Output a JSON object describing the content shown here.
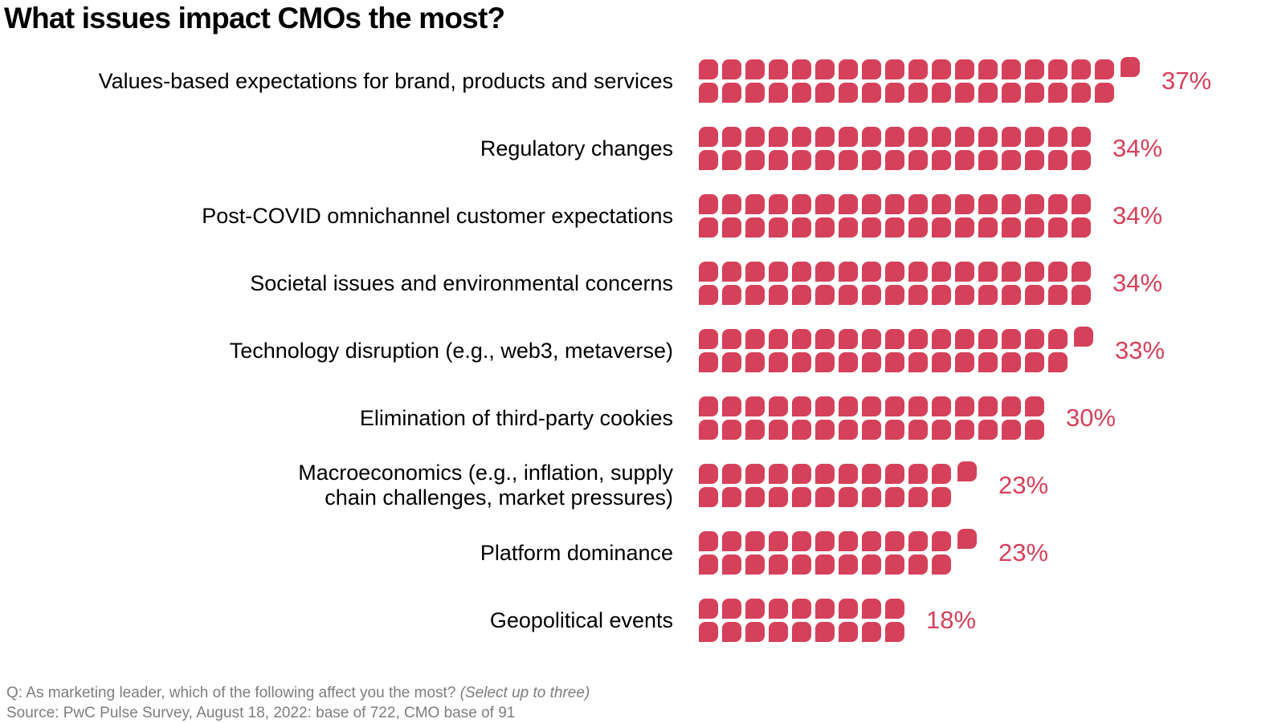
{
  "title": "What issues impact CMOs the most?",
  "colors": {
    "rose": "#d5415a",
    "label_text": "#000000",
    "footnote_text": "#7d7d7d",
    "background": "#ffffff"
  },
  "chart_data": {
    "type": "bar",
    "subtype": "pictogram",
    "orientation": "horizontal",
    "title": "What issues impact CMOs the most?",
    "categories": [
      "Values-based expectations for brand, products and services",
      "Regulatory changes",
      "Post-COVID omnichannel customer expectations",
      "Societal issues and environmental concerns",
      "Technology disruption (e.g., web3, metaverse)",
      "Elimination of third-party cookies",
      "Macroeconomics (e.g., inflation, supply\nchain challenges, market pressures)",
      "Platform dominance",
      "Geopolitical events"
    ],
    "values": [
      37,
      34,
      34,
      34,
      33,
      30,
      23,
      23,
      18
    ],
    "value_labels": [
      "37%",
      "34%",
      "34%",
      "34%",
      "33%",
      "30%",
      "23%",
      "23%",
      "18%"
    ],
    "unit_percent_per_square": 1,
    "squares_per_column": 2,
    "unit_shape": "rounded-square",
    "grid": false,
    "legend": false
  },
  "footnote": {
    "question": "Q: As marketing leader, which of the following affect you the most? ",
    "question_italic": "(Select up to three)",
    "source": "Source: PwC Pulse Survey, August 18, 2022: base of 722, CMO base of 91"
  }
}
